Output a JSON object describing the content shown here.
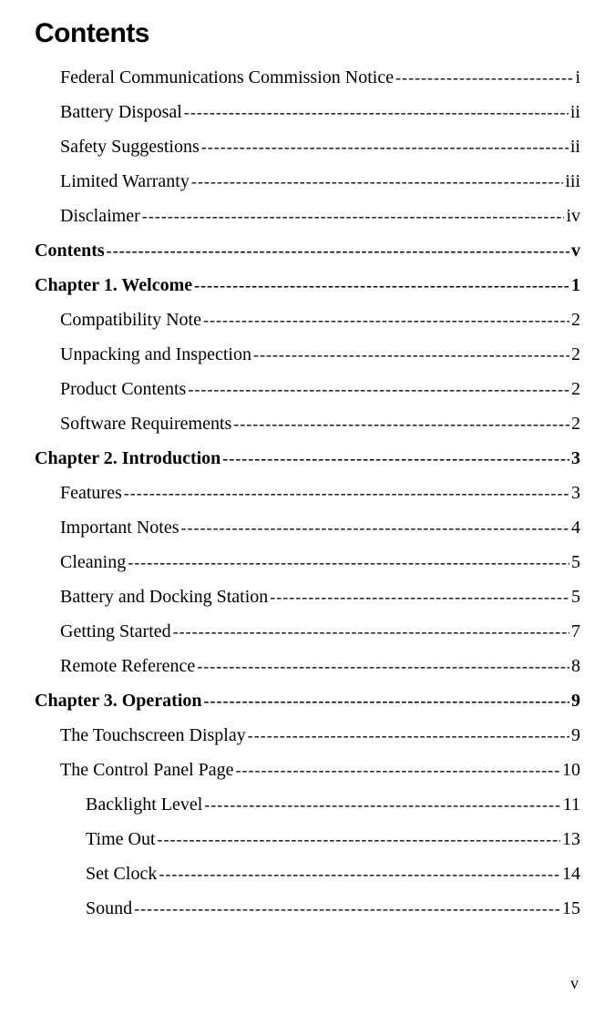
{
  "title": "Contents",
  "entries": [
    {
      "label": "Federal Communications Commission Notice",
      "page": "i",
      "level": 1
    },
    {
      "label": "Battery Disposal",
      "page": "ii",
      "level": 1
    },
    {
      "label": "Safety Suggestions",
      "page": "ii",
      "level": 1
    },
    {
      "label": "Limited Warranty",
      "page": "iii",
      "level": 1
    },
    {
      "label": "Disclaimer",
      "page": "iv",
      "level": 1
    },
    {
      "label": "Contents",
      "page": "v",
      "level": 0
    },
    {
      "label": "Chapter 1. Welcome",
      "page": "1",
      "level": 0
    },
    {
      "label": "Compatibility Note",
      "page": "2",
      "level": 1
    },
    {
      "label": "Unpacking and Inspection",
      "page": "2",
      "level": 1
    },
    {
      "label": "Product Contents",
      "page": "2",
      "level": 1
    },
    {
      "label": "Software Requirements",
      "page": "2",
      "level": 1
    },
    {
      "label": "Chapter 2. Introduction",
      "page": "3",
      "level": 0
    },
    {
      "label": "Features",
      "page": "3",
      "level": 1
    },
    {
      "label": "Important Notes",
      "page": "4",
      "level": 1
    },
    {
      "label": "Cleaning",
      "page": "5",
      "level": 1
    },
    {
      "label": "Battery and Docking Station",
      "page": "5",
      "level": 1
    },
    {
      "label": "Getting Started",
      "page": "7",
      "level": 1
    },
    {
      "label": "Remote Reference",
      "page": "8",
      "level": 1
    },
    {
      "label": "Chapter 3. Operation",
      "page": "9",
      "level": 0
    },
    {
      "label": "The Touchscreen Display",
      "page": "9",
      "level": 1
    },
    {
      "label": "The Control Panel Page",
      "page": "10",
      "level": 1
    },
    {
      "label": "Backlight Level",
      "page": "11",
      "level": 2
    },
    {
      "label": "Time Out",
      "page": "13",
      "level": 2
    },
    {
      "label": "Set Clock",
      "page": "14",
      "level": 2
    },
    {
      "label": "Sound",
      "page": "15",
      "level": 2
    }
  ],
  "footerPage": "v"
}
